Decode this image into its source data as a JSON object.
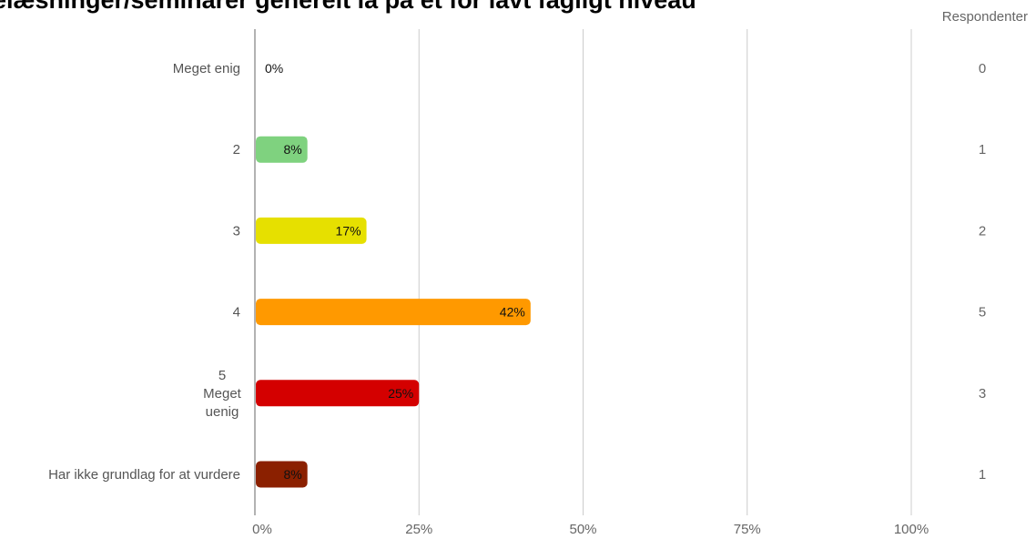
{
  "chart_data": {
    "type": "bar",
    "orientation": "horizontal",
    "title": "elæsninger/seminarer generelt la på et for lavt fagligt niveau",
    "count_header": "Respondenter",
    "categories": [
      [
        "Meget enig"
      ],
      [
        "2"
      ],
      [
        "3"
      ],
      [
        "4"
      ],
      [
        "5",
        "Meget",
        "uenig"
      ],
      [
        "Har ikke grundlag for at vurdere"
      ]
    ],
    "values": [
      0,
      8,
      17,
      42,
      25,
      8
    ],
    "value_labels": [
      "0%",
      "8%",
      "17%",
      "42%",
      "25%",
      "8%"
    ],
    "respondents": [
      "0",
      "1",
      "2",
      "5",
      "3",
      "1"
    ],
    "colors": [
      "#7fd27f",
      "#7fd27f",
      "#e6e000",
      "#ff9900",
      "#d40000",
      "#8b2000"
    ],
    "xlim": [
      0,
      100
    ],
    "xticks": [
      0,
      25,
      50,
      75,
      100
    ],
    "xtick_labels": [
      "0%",
      "25%",
      "50%",
      "75%",
      "100%"
    ],
    "grid": true
  }
}
